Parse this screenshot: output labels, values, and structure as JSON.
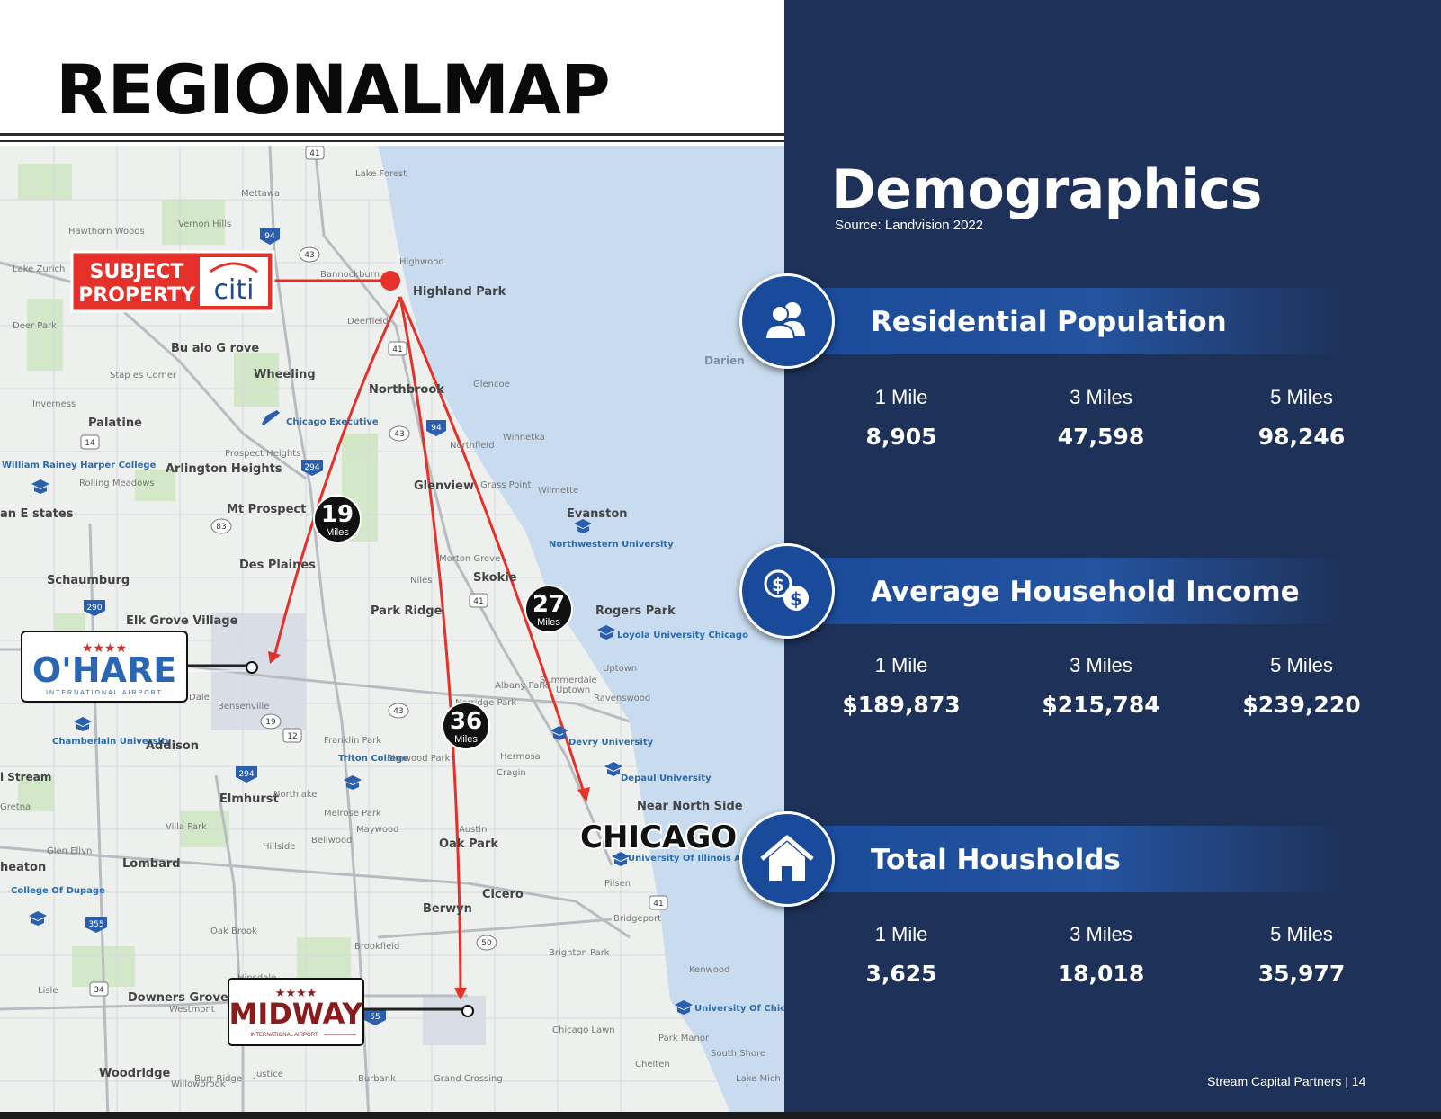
{
  "page": {
    "title": "REGIONALMAP",
    "footer": "Stream Capital Partners  |  14"
  },
  "map": {
    "subject_property": {
      "line1": "SUBJECT",
      "line2": "PROPERTY",
      "brand": "citi"
    },
    "ohare": {
      "stars": "★★★★",
      "name": "O'HARE",
      "sub": "INTERNATIONAL AIRPORT"
    },
    "midway": {
      "stars": "★★★★",
      "name": "MIDWAY",
      "sub": "INTERNATIONAL AIRPORT"
    },
    "chicago_label": "CHICAGO",
    "distances": [
      {
        "value": "19",
        "unit": "Miles"
      },
      {
        "value": "27",
        "unit": "Miles"
      },
      {
        "value": "36",
        "unit": "Miles"
      }
    ],
    "places": [
      "Lake Forest",
      "Mettawa",
      "Vernon Hills",
      "Hawthorn Woods",
      "Lake Zurich",
      "Highwood",
      "Bannockburn",
      "Highland Park",
      "Deer Park",
      "Deerfield",
      "Bu alo G rove",
      "Stap es Corner",
      "Wheeling",
      "Northbrook",
      "Glencoe",
      "Inverness",
      "Palatine",
      "Chicago Executive",
      "Winnetka",
      "Northfield",
      "Prospect Heights",
      "Arlington Heights",
      "William Rainey Harper College",
      "Rolling Meadows",
      "Glenview",
      "Grass Point",
      "Wilmette",
      "an E states",
      "Mt Prospect",
      "Evanston",
      "Northwestern University",
      "Des Plaines",
      "Morton Grove",
      "Schaumburg",
      "Niles",
      "Skokie",
      "Elk Grove Village",
      "Park Ridge",
      "Rogers Park",
      "Loyola University Chicago",
      "Uptown",
      "Summerdale",
      "Albany Park",
      "Uptown",
      "Ravenswood",
      "Bensenville",
      "Norridge Park",
      "Chamberlain University",
      "Addison",
      "Franklin Park",
      "Devry University",
      "Triton College",
      "Elmwood Park",
      "Hermosa",
      "Depaul University",
      "Cragin",
      "l Stream",
      "Elmhurst",
      "Northlake",
      "Near North Side",
      "Melrose Park",
      "Villa Park",
      "Maywood",
      "Austin",
      "Glen Ellyn",
      "Hillside",
      "Bellwood",
      "Oak Park",
      "University Of Illinois At Chicago",
      "heaton",
      "Lombard",
      "Pilsen",
      "College Of Dupage",
      "Cicero",
      "Berwyn",
      "Bridgeport",
      "Oak Brook",
      "Brookfield",
      "Brighton Park",
      "Kenwood",
      "Lisle",
      "Downers Grove",
      "Westmont",
      "Hinsdale",
      "University Of Chicago",
      "Chicago Lawn",
      "Park Manor",
      "South Shore",
      "Woodridge",
      "Darien",
      "Willowbrook",
      "Burr Ridge",
      "Justice",
      "Burbank",
      "Grand Crossing",
      "Chelten",
      "Lake Mich",
      "Gretna",
      "Dale"
    ],
    "shields": [
      "41",
      "94",
      "43",
      "41",
      "43",
      "94",
      "294",
      "83",
      "290",
      "41",
      "43",
      "19",
      "12",
      "294",
      "355",
      "50",
      "34",
      "55",
      "41",
      "14"
    ]
  },
  "demographics": {
    "title": "Demographics",
    "source": "Source: Landvision 2022",
    "sections": [
      {
        "label": "Residential Population",
        "icon": "people-icon",
        "cols": [
          {
            "label": "1 Mile",
            "value": "8,905"
          },
          {
            "label": "3 Miles",
            "value": "47,598"
          },
          {
            "label": "5 Miles",
            "value": "98,246"
          }
        ]
      },
      {
        "label": "Average Household Income",
        "icon": "money-icon",
        "cols": [
          {
            "label": "1 Mile",
            "value": "$189,873"
          },
          {
            "label": "3 Miles",
            "value": "$215,784"
          },
          {
            "label": "5 Miles",
            "value": "$239,220"
          }
        ]
      },
      {
        "label": "Total Housholds",
        "icon": "house-icon",
        "cols": [
          {
            "label": "1 Mile",
            "value": "3,625"
          },
          {
            "label": "3 Miles",
            "value": "18,018"
          },
          {
            "label": "5 Miles",
            "value": "35,977"
          }
        ]
      }
    ]
  },
  "colors": {
    "navy": "#1e3158",
    "band_blue": "#1a4b9a",
    "route_red": "#e5312a",
    "lake": "#c9dcef"
  }
}
